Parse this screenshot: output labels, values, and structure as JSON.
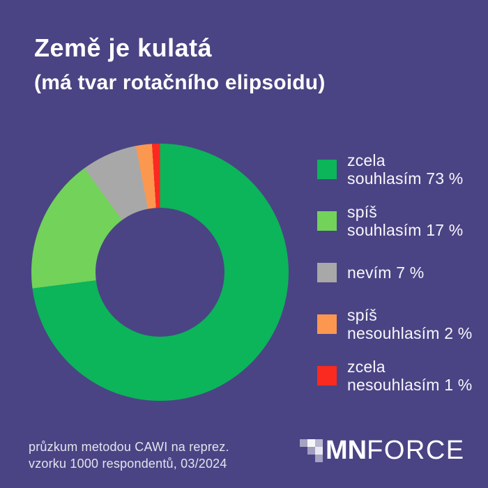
{
  "page": {
    "background_color": "#4a4484",
    "title": "Země je kulatá",
    "subtitle": "(má tvar rotačního elipsoidu)",
    "footer_line1": "průzkum metodou CAWI na reprez.",
    "footer_line2": "vzorku 1000 respondentů, 03/2024"
  },
  "chart_data": {
    "type": "pie",
    "subtype": "donut",
    "title": "Země je kulatá (má tvar rotačního elipsoidu)",
    "start_angle": "12 o'clock",
    "direction": "clockwise",
    "inner_radius_ratio": 0.5,
    "legend_position": "right",
    "segments": [
      {
        "label": "zcela souhlasím",
        "value_pct": 73,
        "color": "#0cb45a",
        "legend_text": "zcela\nsouhlasím 73 %"
      },
      {
        "label": "spíš souhlasím",
        "value_pct": 17,
        "color": "#72d25a",
        "legend_text": "spíš\nsouhlasím 17 %"
      },
      {
        "label": "nevím",
        "value_pct": 7,
        "color": "#a8a8a8",
        "legend_text": "nevím 7 %"
      },
      {
        "label": "spíš nesouhlasím",
        "value_pct": 2,
        "color": "#fc9750",
        "legend_text": "spíš\nnesouhlasím 2 %"
      },
      {
        "label": "zcela nesouhlasím",
        "value_pct": 1,
        "color": "#fa2a21",
        "legend_text": "zcela\nnesouhlasím 1 %"
      }
    ]
  },
  "logo": {
    "bold_part": "MN",
    "light_part": "FORCE",
    "pixel_cells": [
      {
        "row": 0,
        "col": 0,
        "opacity": 0.5
      },
      {
        "row": 0,
        "col": 1,
        "opacity": 0.95
      },
      {
        "row": 0,
        "col": 2,
        "opacity": 0.62
      },
      {
        "row": 1,
        "col": 1,
        "opacity": 0.48
      },
      {
        "row": 1,
        "col": 2,
        "opacity": 0.88
      },
      {
        "row": 2,
        "col": 2,
        "opacity": 0.5
      }
    ]
  }
}
